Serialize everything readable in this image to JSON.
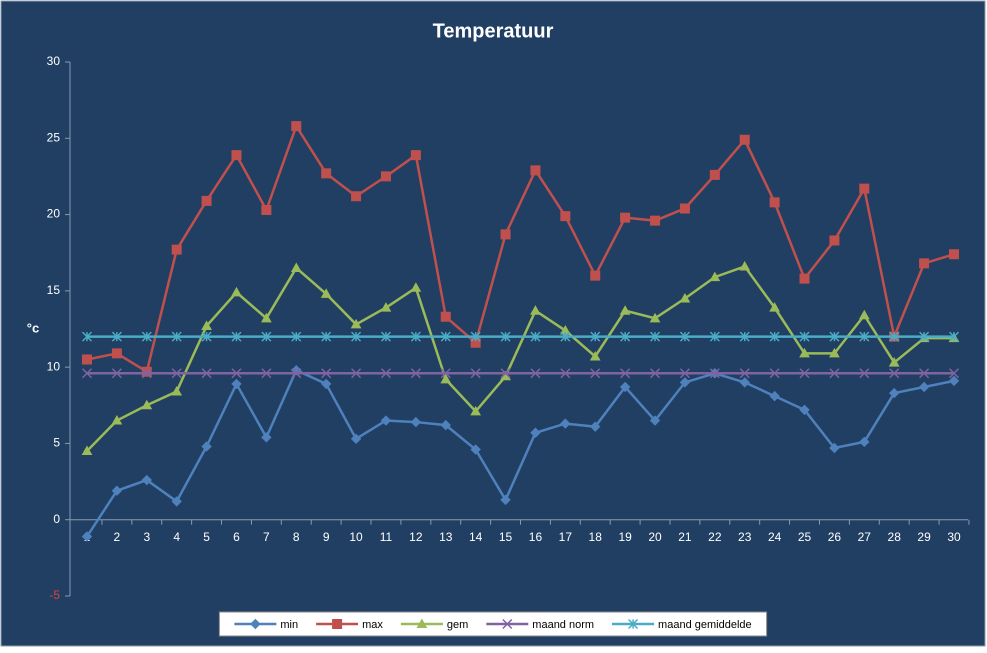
{
  "chart_data": {
    "type": "line",
    "title": "Temperatuur",
    "y_label": "°c",
    "categories": [
      "1",
      "2",
      "3",
      "4",
      "5",
      "6",
      "7",
      "8",
      "9",
      "10",
      "11",
      "12",
      "13",
      "14",
      "15",
      "16",
      "17",
      "18",
      "19",
      "20",
      "21",
      "22",
      "23",
      "24",
      "25",
      "26",
      "27",
      "28",
      "29",
      "30"
    ],
    "series": [
      {
        "name": "min",
        "color": "#4f81bd",
        "marker": "diamond",
        "values": [
          -1.1,
          1.9,
          2.6,
          1.2,
          4.8,
          8.9,
          5.4,
          9.8,
          8.9,
          5.3,
          6.5,
          6.4,
          6.2,
          4.6,
          1.3,
          5.7,
          6.3,
          6.1,
          8.7,
          6.5,
          9.0,
          9.6,
          9.0,
          8.1,
          7.2,
          4.7,
          5.1,
          8.3,
          8.7,
          9.1
        ]
      },
      {
        "name": "max",
        "color": "#c0504d",
        "marker": "square",
        "values": [
          10.5,
          10.9,
          9.7,
          17.7,
          20.9,
          23.9,
          20.3,
          25.8,
          22.7,
          21.2,
          22.5,
          23.9,
          13.3,
          11.6,
          18.7,
          22.9,
          19.9,
          16.0,
          19.8,
          19.6,
          20.4,
          22.6,
          24.9,
          20.8,
          15.8,
          18.3,
          21.7,
          12.0,
          16.8,
          17.4
        ]
      },
      {
        "name": "gem",
        "color": "#9bbb59",
        "marker": "triangle",
        "values": [
          4.5,
          6.5,
          7.5,
          8.4,
          12.7,
          14.9,
          13.2,
          16.5,
          14.8,
          12.8,
          13.9,
          15.2,
          9.2,
          7.1,
          9.4,
          13.7,
          12.4,
          10.7,
          13.7,
          13.2,
          14.5,
          15.9,
          16.6,
          13.9,
          10.9,
          10.9,
          13.4,
          10.3,
          11.9,
          11.9
        ]
      },
      {
        "name": "maand norm",
        "color": "#8064a2",
        "marker": "x",
        "values": [
          9.6,
          9.6,
          9.6,
          9.6,
          9.6,
          9.6,
          9.6,
          9.6,
          9.6,
          9.6,
          9.6,
          9.6,
          9.6,
          9.6,
          9.6,
          9.6,
          9.6,
          9.6,
          9.6,
          9.6,
          9.6,
          9.6,
          9.6,
          9.6,
          9.6,
          9.6,
          9.6,
          9.6,
          9.6,
          9.6
        ]
      },
      {
        "name": "maand gemiddelde",
        "color": "#4bacc6",
        "marker": "star",
        "values": [
          12.0,
          12.0,
          12.0,
          12.0,
          12.0,
          12.0,
          12.0,
          12.0,
          12.0,
          12.0,
          12.0,
          12.0,
          12.0,
          12.0,
          12.0,
          12.0,
          12.0,
          12.0,
          12.0,
          12.0,
          12.0,
          12.0,
          12.0,
          12.0,
          12.0,
          12.0,
          12.0,
          12.0,
          12.0,
          12.0
        ]
      }
    ],
    "ylim": [
      -5,
      30
    ],
    "yticks": [
      -5,
      0,
      5,
      10,
      15,
      20,
      25,
      30
    ],
    "negative_tick_color": "#e04040",
    "grid": false,
    "legend": "bottom"
  }
}
